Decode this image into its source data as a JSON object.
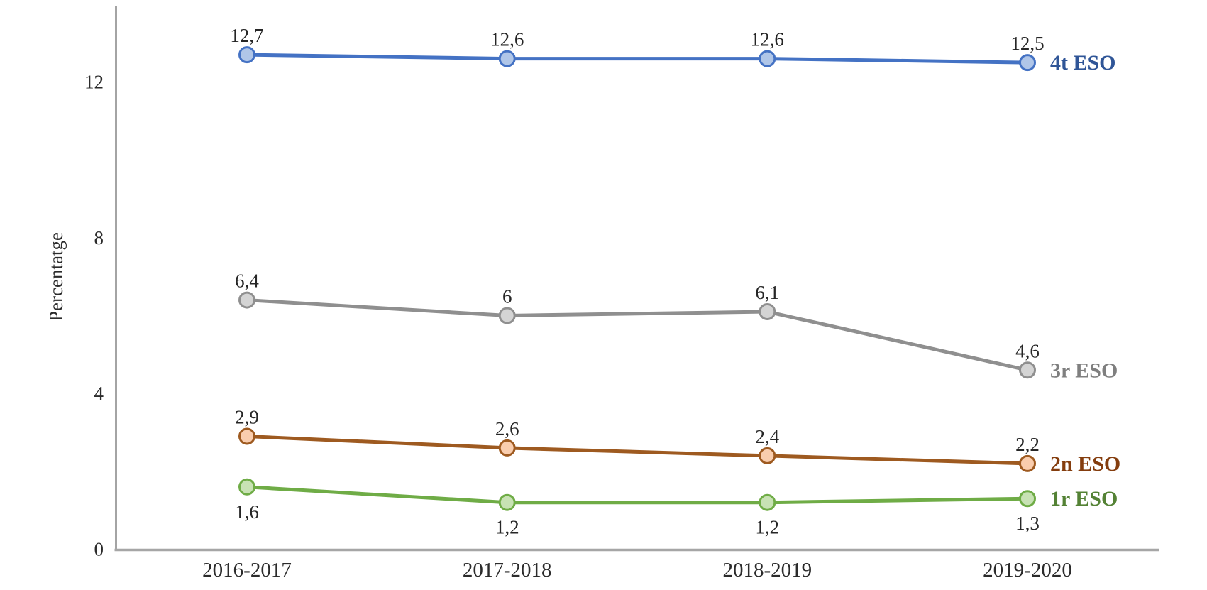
{
  "chart_data": {
    "type": "line",
    "title": "",
    "xlabel": "",
    "ylabel": "Percentatge",
    "categories": [
      "2016-2017",
      "2017-2018",
      "2018-2019",
      "2019-2020"
    ],
    "y_ticks": [
      0,
      4,
      8,
      12
    ],
    "ylim": [
      0,
      13.95
    ],
    "grid": false,
    "decimal_separator": ",",
    "legend_position": "right-of-last-point",
    "axis_colors": {
      "y_axis_line": "#4a4a4a",
      "x_axis_line": "#a6a6a6"
    },
    "series": [
      {
        "name": "4t ESO",
        "values": [
          12.7,
          12.6,
          12.6,
          12.5
        ],
        "labels": [
          "12,7",
          "12,6",
          "12,6",
          "12,5"
        ],
        "label_side": "above",
        "line_color": "#4472c4",
        "marker_fill": "#b0c6e8",
        "name_color": "#2f5597"
      },
      {
        "name": "3r ESO",
        "values": [
          6.4,
          6,
          6.1,
          4.6
        ],
        "labels": [
          "6,4",
          "6",
          "6,1",
          "4,6"
        ],
        "label_side": "above",
        "line_color": "#8f8f8f",
        "marker_fill": "#d4d4d4",
        "name_color": "#7f7f7f"
      },
      {
        "name": "2n ESO",
        "values": [
          2.9,
          2.6,
          2.4,
          2.2
        ],
        "labels": [
          "2,9",
          "2,6",
          "2,4",
          "2,2"
        ],
        "label_side": "above",
        "line_color": "#9e5a20",
        "marker_fill": "#f9cdae",
        "name_color": "#843d0e"
      },
      {
        "name": "1r ESO",
        "values": [
          1.6,
          1.2,
          1.2,
          1.3
        ],
        "labels": [
          "1,6",
          "1,2",
          "1,2",
          "1,3"
        ],
        "label_side": "below",
        "line_color": "#6fac46",
        "marker_fill": "#c8e2b4",
        "name_color": "#548235"
      }
    ]
  }
}
